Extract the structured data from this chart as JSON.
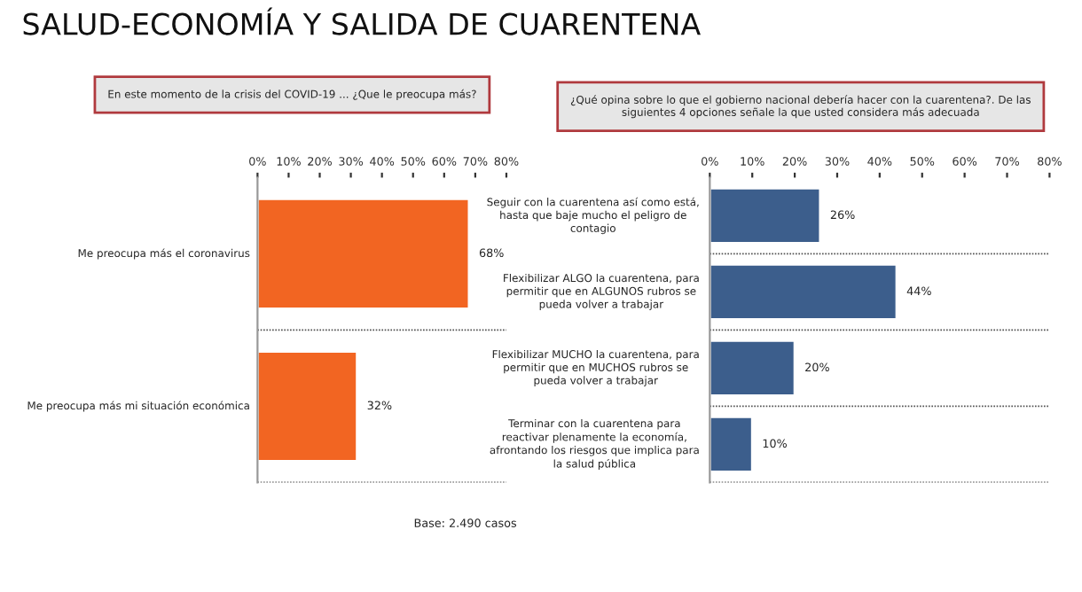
{
  "chart_data": [
    {
      "type": "bar",
      "orientation": "horizontal",
      "title": "SALUD-ECONOMÍA Y SALIDA DE CUARENTENA",
      "subtitle": "En este momento de la crisis del COVID-19 ... ¿Que le preocupa más?",
      "categories": [
        "Me preocupa más el coronavirus",
        "Me preocupa más mi situación económica"
      ],
      "values": [
        68,
        32
      ],
      "value_labels": [
        "68%",
        "32%"
      ],
      "color": "#f26522",
      "xlim": [
        0,
        80
      ],
      "xticks": [
        {
          "value": 0,
          "label": "0%"
        },
        {
          "value": 10,
          "label": "10%"
        },
        {
          "value": 20,
          "label": "20%"
        },
        {
          "value": 30,
          "label": "30%"
        },
        {
          "value": 40,
          "label": "40%"
        },
        {
          "value": 50,
          "label": "50%"
        },
        {
          "value": 60,
          "label": "60%"
        },
        {
          "value": 70,
          "label": "70%"
        },
        {
          "value": 80,
          "label": "80%"
        }
      ],
      "annotations": [
        "Base: 2.490 casos"
      ]
    },
    {
      "type": "bar",
      "orientation": "horizontal",
      "subtitle": "¿Qué opina sobre lo que el gobierno nacional debería hacer con la cuarentena?. De las\nsiguientes 4 opciones señale la que usted considera más adecuada",
      "categories": [
        "Seguir con la cuarentena así como está,\nhasta que baje mucho el peligro de\ncontagio",
        "Flexibilizar ALGO la cuarentena, para\npermitir que en ALGUNOS rubros se\npueda volver a trabajar",
        "Flexibilizar MUCHO la cuarentena, para\npermitir que en MUCHOS rubros se\npueda volver a trabajar",
        "Terminar con la cuarentena para\nreactivar plenamente la economía,\nafrontando los riesgos que implica para\nla salud pública"
      ],
      "values": [
        26,
        44,
        20,
        10
      ],
      "value_labels": [
        "26%",
        "44%",
        "20%",
        "10%"
      ],
      "color": "#3c5e8c",
      "xlim": [
        0,
        80
      ],
      "xticks": [
        {
          "value": 0,
          "label": "0%"
        },
        {
          "value": 10,
          "label": "10%"
        },
        {
          "value": 20,
          "label": "20%"
        },
        {
          "value": 30,
          "label": "30%"
        },
        {
          "value": 40,
          "label": "40%"
        },
        {
          "value": 50,
          "label": "50%"
        },
        {
          "value": 60,
          "label": "60%"
        },
        {
          "value": 70,
          "label": "70%"
        },
        {
          "value": 80,
          "label": "80%"
        }
      ]
    }
  ]
}
